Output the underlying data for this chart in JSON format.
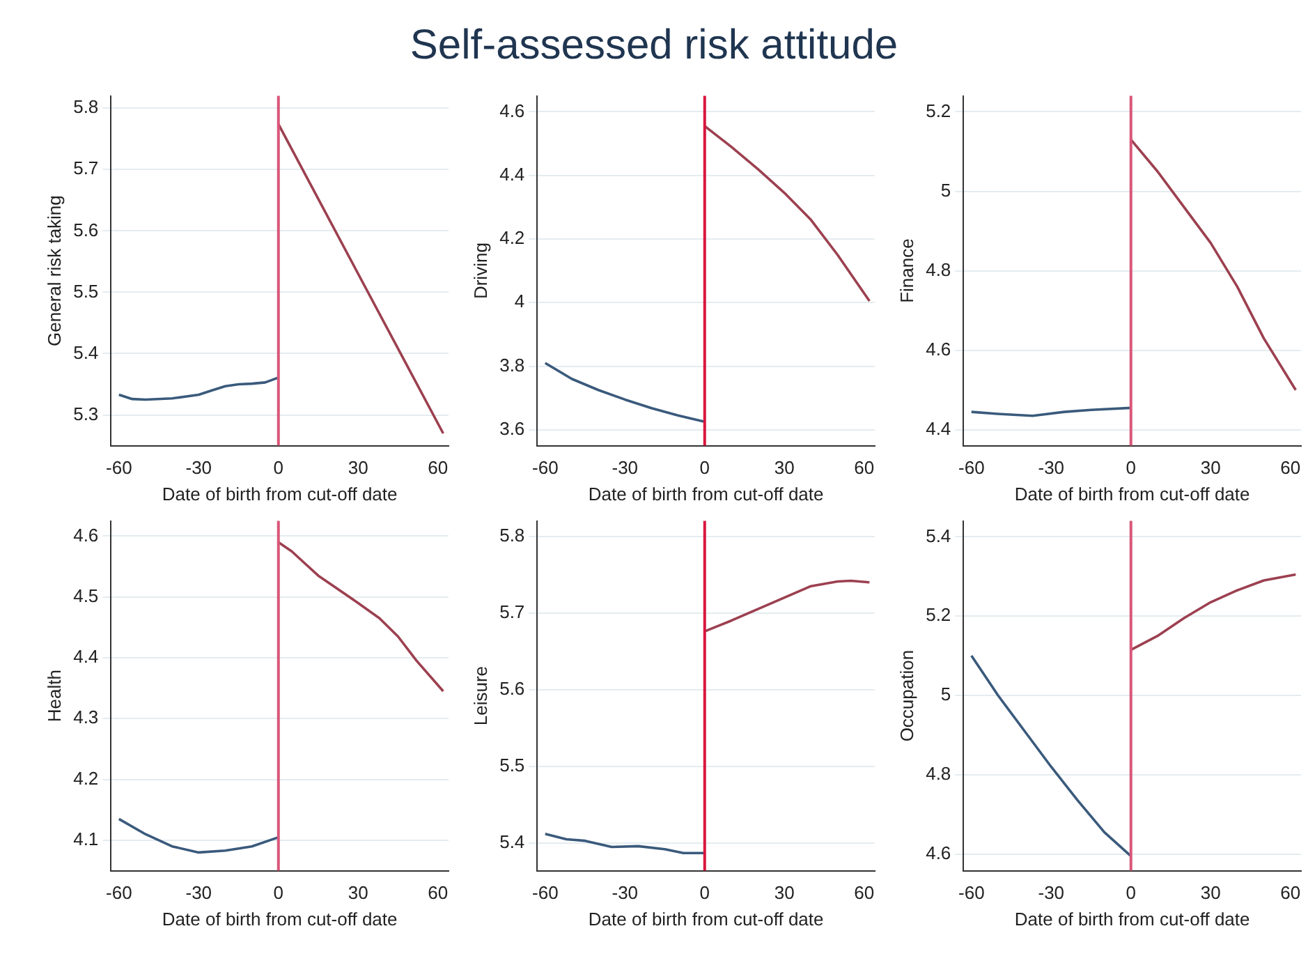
{
  "chart_data": [
    {
      "type": "other",
      "title": "Self-assessed risk attitude"
    },
    {
      "type": "line",
      "xlabel": "Date of birth from cut-off date",
      "ylabel": "General risk taking",
      "xlim": [
        -63,
        64
      ],
      "xticks": [
        -60,
        -30,
        0,
        30,
        60
      ],
      "ylim": [
        5.25,
        5.82
      ],
      "yticks": [
        5.3,
        5.4,
        5.5,
        5.6,
        5.7,
        5.8
      ],
      "grid": "y",
      "marker": "none",
      "line_style": "solid",
      "ref_lines": [
        {
          "axis": "x",
          "value": 0,
          "color": "#d9577a"
        }
      ],
      "series": [
        {
          "color": "#3a5a7c",
          "x": [
            -60,
            -55,
            -50,
            -40,
            -30,
            -25,
            -20,
            -15,
            -10,
            -5,
            0
          ],
          "values": [
            5.333,
            5.326,
            5.325,
            5.327,
            5.333,
            5.34,
            5.347,
            5.35,
            5.351,
            5.353,
            5.361
          ]
        },
        {
          "color": "#9c4050",
          "x": [
            0,
            30,
            62
          ],
          "values": [
            5.774,
            5.53,
            5.27
          ]
        }
      ]
    },
    {
      "type": "line",
      "xlabel": "Date of birth from cut-off date",
      "ylabel": "Driving",
      "xlim": [
        -63,
        64
      ],
      "xticks": [
        -60,
        -30,
        0,
        30,
        60
      ],
      "ylim": [
        3.55,
        4.65
      ],
      "yticks": [
        3.6,
        3.8,
        4,
        4.2,
        4.4,
        4.6
      ],
      "grid": "y",
      "marker": "none",
      "line_style": "solid",
      "ref_lines": [
        {
          "axis": "x",
          "value": 0,
          "color": "#d9163f"
        }
      ],
      "series": [
        {
          "color": "#3a5a7c",
          "x": [
            -60,
            -50,
            -40,
            -30,
            -20,
            -10,
            0
          ],
          "values": [
            3.81,
            3.76,
            3.725,
            3.695,
            3.668,
            3.645,
            3.625
          ]
        },
        {
          "color": "#9c4050",
          "x": [
            0,
            10,
            20,
            30,
            40,
            50,
            62
          ],
          "values": [
            4.555,
            4.49,
            4.42,
            4.345,
            4.26,
            4.15,
            4.005
          ]
        }
      ]
    },
    {
      "type": "line",
      "xlabel": "Date of birth from cut-off date",
      "ylabel": "Finance",
      "xlim": [
        -63,
        64
      ],
      "xticks": [
        -60,
        -30,
        0,
        30,
        60
      ],
      "ylim": [
        4.36,
        5.24
      ],
      "yticks": [
        4.4,
        4.6,
        4.8,
        5,
        5.2
      ],
      "grid": "y",
      "marker": "none",
      "line_style": "solid",
      "ref_lines": [
        {
          "axis": "x",
          "value": 0,
          "color": "#d9577a"
        }
      ],
      "series": [
        {
          "color": "#3a5a7c",
          "x": [
            -60,
            -50,
            -37,
            -25,
            -15,
            0
          ],
          "values": [
            4.445,
            4.44,
            4.435,
            4.445,
            4.45,
            4.455
          ]
        },
        {
          "color": "#9c4050",
          "x": [
            0,
            10,
            20,
            30,
            40,
            50,
            62
          ],
          "values": [
            5.13,
            5.05,
            4.96,
            4.87,
            4.76,
            4.63,
            4.5
          ]
        }
      ]
    },
    {
      "type": "line",
      "xlabel": "Date of birth from cut-off date",
      "ylabel": "Health",
      "xlim": [
        -63,
        64
      ],
      "xticks": [
        -60,
        -30,
        0,
        30,
        60
      ],
      "ylim": [
        4.05,
        4.625
      ],
      "yticks": [
        4.1,
        4.2,
        4.3,
        4.4,
        4.5,
        4.6
      ],
      "grid": "y",
      "marker": "none",
      "line_style": "solid",
      "ref_lines": [
        {
          "axis": "x",
          "value": 0,
          "color": "#d9577a"
        }
      ],
      "series": [
        {
          "color": "#3a5a7c",
          "x": [
            -60,
            -50,
            -40,
            -30,
            -20,
            -10,
            0
          ],
          "values": [
            4.135,
            4.11,
            4.09,
            4.08,
            4.083,
            4.09,
            4.105
          ]
        },
        {
          "color": "#9c4050",
          "x": [
            0,
            5,
            10,
            15,
            20,
            30,
            38,
            45,
            52,
            62
          ],
          "values": [
            4.59,
            4.575,
            4.555,
            4.535,
            4.52,
            4.49,
            4.465,
            4.435,
            4.395,
            4.345
          ]
        }
      ]
    },
    {
      "type": "line",
      "xlabel": "Date of birth from cut-off date",
      "ylabel": "Leisure",
      "xlim": [
        -63,
        64
      ],
      "xticks": [
        -60,
        -30,
        0,
        30,
        60
      ],
      "ylim": [
        5.364,
        5.82
      ],
      "yticks": [
        5.4,
        5.5,
        5.6,
        5.7,
        5.8
      ],
      "grid": "y",
      "marker": "none",
      "line_style": "solid",
      "ref_lines": [
        {
          "axis": "x",
          "value": 0,
          "color": "#d9163f"
        }
      ],
      "series": [
        {
          "color": "#3a5a7c",
          "x": [
            -60,
            -52,
            -45,
            -35,
            -25,
            -15,
            -8,
            0
          ],
          "values": [
            5.412,
            5.405,
            5.403,
            5.395,
            5.396,
            5.392,
            5.387,
            5.387
          ]
        },
        {
          "color": "#9c4050",
          "x": [
            0,
            5,
            10,
            20,
            30,
            40,
            50,
            55,
            62
          ],
          "values": [
            5.676,
            5.683,
            5.69,
            5.705,
            5.72,
            5.735,
            5.741,
            5.742,
            5.74
          ]
        }
      ]
    },
    {
      "type": "line",
      "xlabel": "Date of birth from cut-off date",
      "ylabel": "Occupation",
      "xlim": [
        -63,
        64
      ],
      "xticks": [
        -60,
        -30,
        0,
        30,
        60
      ],
      "ylim": [
        4.558,
        5.44
      ],
      "yticks": [
        4.6,
        4.8,
        5,
        5.2,
        5.4
      ],
      "grid": "y",
      "marker": "none",
      "line_style": "solid",
      "ref_lines": [
        {
          "axis": "x",
          "value": 0,
          "color": "#d9577a"
        }
      ],
      "series": [
        {
          "color": "#3a5a7c",
          "x": [
            -60,
            -50,
            -40,
            -30,
            -20,
            -10,
            0
          ],
          "values": [
            5.1,
            5.0,
            4.91,
            4.82,
            4.735,
            4.655,
            4.595
          ]
        },
        {
          "color": "#9c4050",
          "x": [
            0,
            10,
            20,
            30,
            40,
            50,
            62
          ],
          "values": [
            5.115,
            5.15,
            5.195,
            5.235,
            5.265,
            5.29,
            5.305
          ]
        }
      ]
    }
  ]
}
